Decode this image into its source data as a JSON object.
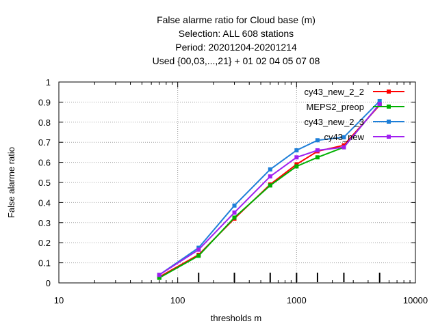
{
  "chart_data": {
    "type": "line",
    "title_lines": [
      "False alarme ratio  for Cloud base (m)",
      "Selection: ALL    608 stations",
      "Period: 20201204-20201214",
      "Used {00,03,...,21} + 01 02 04 05 07 08"
    ],
    "xlabel": "thresholds m",
    "ylabel": "False alarme ratio",
    "x_scale": "log",
    "xlim": [
      10,
      10000
    ],
    "ylim": [
      0,
      1
    ],
    "x_ticks": [
      10,
      100,
      1000,
      10000
    ],
    "x_tick_labels": [
      "10",
      "100",
      "1000",
      "10000"
    ],
    "y_ticks": [
      0,
      0.1,
      0.2,
      0.3,
      0.4,
      0.5,
      0.6,
      0.7,
      0.8,
      0.9,
      1
    ],
    "y_tick_labels": [
      "0",
      "0.1",
      "0.2",
      "0.3",
      "0.4",
      "0.5",
      "0.6",
      "0.7",
      "0.8",
      "0.9",
      "1"
    ],
    "grid": true,
    "legend_position": "top-right",
    "threshold_markers": [
      150,
      300,
      600,
      1000,
      1500,
      2500,
      5000
    ],
    "x": [
      70,
      150,
      300,
      600,
      1000,
      1500,
      2500,
      5000
    ],
    "series": [
      {
        "name": "cy43_new_2_2",
        "color": "#ff0000",
        "values": [
          0.03,
          0.14,
          0.32,
          0.49,
          0.59,
          0.655,
          0.685,
          0.885
        ]
      },
      {
        "name": "MEPS2_preop",
        "color": "#00b000",
        "values": [
          0.025,
          0.135,
          0.325,
          0.485,
          0.58,
          0.625,
          0.675,
          0.89
        ]
      },
      {
        "name": "cy43_new_2_3",
        "color": "#1e7fd8",
        "values": [
          0.04,
          0.175,
          0.385,
          0.565,
          0.66,
          0.71,
          0.725,
          0.905
        ]
      },
      {
        "name": "cy43_new",
        "color": "#a020f0",
        "values": [
          0.04,
          0.165,
          0.35,
          0.53,
          0.625,
          0.66,
          0.675,
          0.89
        ]
      }
    ]
  }
}
